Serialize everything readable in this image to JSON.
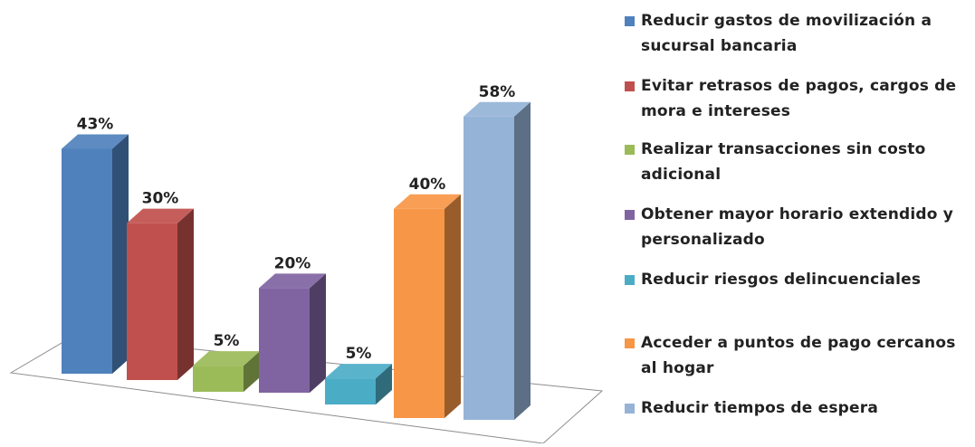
{
  "chart_data": {
    "type": "bar",
    "title": "",
    "xlabel": "",
    "ylabel": "",
    "ylim": [
      0,
      60
    ],
    "grid": false,
    "legend_position": "right",
    "three_d": true,
    "categories": [
      "Reducir gastos de movilización a sucursal bancaria",
      "Evitar retrasos de pagos, cargos de mora e intereses",
      "Realizar transacciones sin costo adicional",
      "Obtener mayor horario extendido y personalizado",
      "Reducir riesgos delincuenciales",
      "Acceder a puntos de pago cercanos al hogar",
      "Reducir tiempos de espera"
    ],
    "values": [
      43,
      30,
      5,
      20,
      5,
      40,
      58
    ],
    "data_labels": [
      "43%",
      "30%",
      "5%",
      "20%",
      "5%",
      "40%",
      "58%"
    ],
    "colors": [
      "#4f81bd",
      "#c0504d",
      "#9bbb59",
      "#8064a2",
      "#4bacc6",
      "#f79646",
      "#95b3d7"
    ]
  },
  "legend": {
    "items": [
      "Reducir gastos de movilización a sucursal bancaria",
      "Evitar retrasos de pagos, cargos de mora e intereses",
      "Realizar transacciones sin costo adicional",
      "Obtener mayor horario extendido y personalizado",
      "Reducir riesgos delincuenciales",
      "Acceder a puntos de pago cercanos al hogar",
      "Reducir tiempos de espera"
    ]
  }
}
